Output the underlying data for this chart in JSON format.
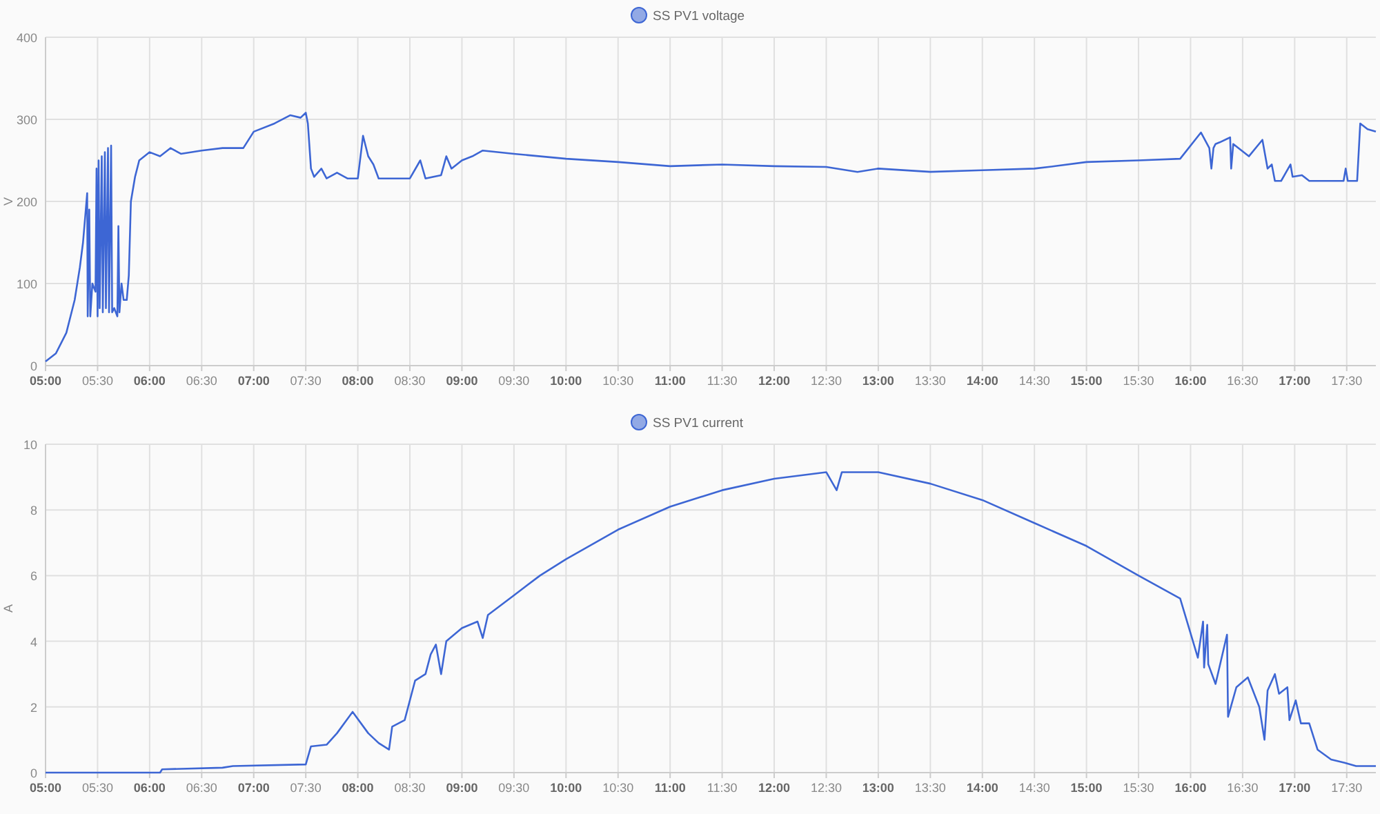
{
  "chart_data": [
    {
      "type": "line",
      "ylabel": "V",
      "legend": "top",
      "grid": true,
      "xlim": [
        5,
        17.78
      ],
      "ylim": [
        0,
        400
      ],
      "yticks": [
        0,
        100,
        200,
        300,
        400
      ],
      "xticks": [
        {
          "value": 5,
          "label": "05:00"
        },
        {
          "value": 5.5,
          "label": "05:30"
        },
        {
          "value": 6,
          "label": "06:00"
        },
        {
          "value": 6.5,
          "label": "06:30"
        },
        {
          "value": 7,
          "label": "07:00"
        },
        {
          "value": 7.5,
          "label": "07:30"
        },
        {
          "value": 8,
          "label": "08:00"
        },
        {
          "value": 8.5,
          "label": "08:30"
        },
        {
          "value": 9,
          "label": "09:00"
        },
        {
          "value": 9.5,
          "label": "09:30"
        },
        {
          "value": 10,
          "label": "10:00"
        },
        {
          "value": 10.5,
          "label": "10:30"
        },
        {
          "value": 11,
          "label": "11:00"
        },
        {
          "value": 11.5,
          "label": "11:30"
        },
        {
          "value": 12,
          "label": "12:00"
        },
        {
          "value": 12.5,
          "label": "12:30"
        },
        {
          "value": 13,
          "label": "13:00"
        },
        {
          "value": 13.5,
          "label": "13:30"
        },
        {
          "value": 14,
          "label": "14:00"
        },
        {
          "value": 14.5,
          "label": "14:30"
        },
        {
          "value": 15,
          "label": "15:00"
        },
        {
          "value": 15.5,
          "label": "15:30"
        },
        {
          "value": 16,
          "label": "16:00"
        },
        {
          "value": 16.5,
          "label": "16:30"
        },
        {
          "value": 17,
          "label": "17:00"
        },
        {
          "value": 17.5,
          "label": "17:30"
        }
      ],
      "x": [
        5.0,
        5.1,
        5.2,
        5.28,
        5.33,
        5.36,
        5.38,
        5.4,
        5.405,
        5.42,
        5.43,
        5.45,
        5.48,
        5.49,
        5.5,
        5.51,
        5.52,
        5.54,
        5.55,
        5.57,
        5.58,
        5.6,
        5.61,
        5.63,
        5.64,
        5.66,
        5.69,
        5.7,
        5.71,
        5.73,
        5.75,
        5.78,
        5.8,
        5.82,
        5.86,
        5.9,
        5.95,
        6.0,
        6.1,
        6.2,
        6.3,
        6.5,
        6.7,
        6.9,
        7.0,
        7.2,
        7.35,
        7.45,
        7.5,
        7.52,
        7.55,
        7.58,
        7.65,
        7.7,
        7.8,
        7.9,
        8.0,
        8.05,
        8.1,
        8.15,
        8.2,
        8.3,
        8.5,
        8.6,
        8.65,
        8.8,
        8.85,
        8.9,
        9.0,
        9.1,
        9.2,
        9.5,
        10.0,
        10.5,
        11.0,
        11.5,
        12.0,
        12.5,
        12.8,
        13.0,
        13.5,
        14.0,
        14.5,
        14.7,
        15.0,
        15.5,
        15.9,
        16.1,
        16.18,
        16.2,
        16.22,
        16.24,
        16.28,
        16.38,
        16.39,
        16.41,
        16.56,
        16.69,
        16.74,
        16.78,
        16.81,
        16.87,
        16.96,
        16.98,
        17.07,
        17.14,
        17.47,
        17.49,
        17.51,
        17.6,
        17.63,
        17.7,
        17.78
      ],
      "series": [
        {
          "name": "SS PV1 voltage",
          "color": "#3d66d4",
          "values": [
            5,
            15,
            40,
            80,
            120,
            150,
            180,
            210,
            60,
            190,
            60,
            100,
            90,
            240,
            60,
            250,
            70,
            255,
            65,
            260,
            70,
            265,
            65,
            268,
            65,
            70,
            60,
            170,
            65,
            100,
            80,
            80,
            110,
            200,
            230,
            250,
            255,
            260,
            255,
            265,
            258,
            262,
            265,
            265,
            285,
            295,
            305,
            302,
            308,
            295,
            240,
            230,
            240,
            228,
            235,
            228,
            228,
            280,
            255,
            245,
            228,
            228,
            228,
            250,
            228,
            232,
            255,
            240,
            250,
            255,
            262,
            258,
            252,
            248,
            243,
            245,
            243,
            242,
            236,
            240,
            236,
            238,
            240,
            243,
            248,
            250,
            252,
            284,
            265,
            240,
            265,
            270,
            272,
            278,
            240,
            270,
            255,
            275,
            240,
            245,
            225,
            225,
            245,
            230,
            232,
            225,
            225,
            240,
            225,
            225,
            295,
            288,
            285
          ]
        }
      ]
    },
    {
      "type": "line",
      "ylabel": "A",
      "legend": "top",
      "grid": true,
      "xlim": [
        5,
        17.78
      ],
      "ylim": [
        0,
        10
      ],
      "yticks": [
        0,
        2,
        4,
        6,
        8,
        10
      ],
      "xticks": [
        {
          "value": 5,
          "label": "05:00"
        },
        {
          "value": 5.5,
          "label": "05:30"
        },
        {
          "value": 6,
          "label": "06:00"
        },
        {
          "value": 6.5,
          "label": "06:30"
        },
        {
          "value": 7,
          "label": "07:00"
        },
        {
          "value": 7.5,
          "label": "07:30"
        },
        {
          "value": 8,
          "label": "08:00"
        },
        {
          "value": 8.5,
          "label": "08:30"
        },
        {
          "value": 9,
          "label": "09:00"
        },
        {
          "value": 9.5,
          "label": "09:30"
        },
        {
          "value": 10,
          "label": "10:00"
        },
        {
          "value": 10.5,
          "label": "10:30"
        },
        {
          "value": 11,
          "label": "11:00"
        },
        {
          "value": 11.5,
          "label": "11:30"
        },
        {
          "value": 12,
          "label": "12:00"
        },
        {
          "value": 12.5,
          "label": "12:30"
        },
        {
          "value": 13,
          "label": "13:00"
        },
        {
          "value": 13.5,
          "label": "13:30"
        },
        {
          "value": 14,
          "label": "14:00"
        },
        {
          "value": 14.5,
          "label": "14:30"
        },
        {
          "value": 15,
          "label": "15:00"
        },
        {
          "value": 15.5,
          "label": "15:30"
        },
        {
          "value": 16,
          "label": "16:00"
        },
        {
          "value": 16.5,
          "label": "16:30"
        },
        {
          "value": 17,
          "label": "17:00"
        },
        {
          "value": 17.5,
          "label": "17:30"
        }
      ],
      "x": [
        5.0,
        6.1,
        6.12,
        6.7,
        6.8,
        7.5,
        7.55,
        7.7,
        7.8,
        7.95,
        8.1,
        8.2,
        8.3,
        8.33,
        8.45,
        8.55,
        8.65,
        8.7,
        8.75,
        8.8,
        8.85,
        9.0,
        9.15,
        9.2,
        9.25,
        9.5,
        9.75,
        10.0,
        10.5,
        11.0,
        11.5,
        12.0,
        12.5,
        12.6,
        12.65,
        13.0,
        13.5,
        14.0,
        14.5,
        15.0,
        15.5,
        15.9,
        16.07,
        16.12,
        16.13,
        16.16,
        16.17,
        16.24,
        16.35,
        16.36,
        16.44,
        16.55,
        16.66,
        16.71,
        16.74,
        16.81,
        16.85,
        16.93,
        16.95,
        17.01,
        17.06,
        17.14,
        17.22,
        17.35,
        17.48,
        17.59,
        17.78
      ],
      "series": [
        {
          "name": "SS PV1 current",
          "color": "#3d66d4",
          "values": [
            0,
            0,
            0.1,
            0.15,
            0.2,
            0.25,
            0.8,
            0.85,
            1.2,
            1.85,
            1.2,
            0.9,
            0.7,
            1.4,
            1.6,
            2.8,
            3.0,
            3.6,
            3.9,
            3.0,
            4.0,
            4.4,
            4.6,
            4.1,
            4.8,
            5.4,
            6.0,
            6.5,
            7.4,
            8.1,
            8.6,
            8.95,
            9.15,
            8.6,
            9.15,
            9.15,
            8.8,
            8.3,
            7.6,
            6.9,
            6.0,
            5.3,
            3.5,
            4.6,
            3.2,
            4.5,
            3.3,
            2.7,
            4.2,
            1.7,
            2.6,
            2.9,
            2.0,
            1.0,
            2.5,
            3.0,
            2.4,
            2.6,
            1.6,
            2.2,
            1.5,
            1.5,
            0.7,
            0.4,
            0.3,
            0.2,
            0.2
          ]
        }
      ]
    }
  ]
}
